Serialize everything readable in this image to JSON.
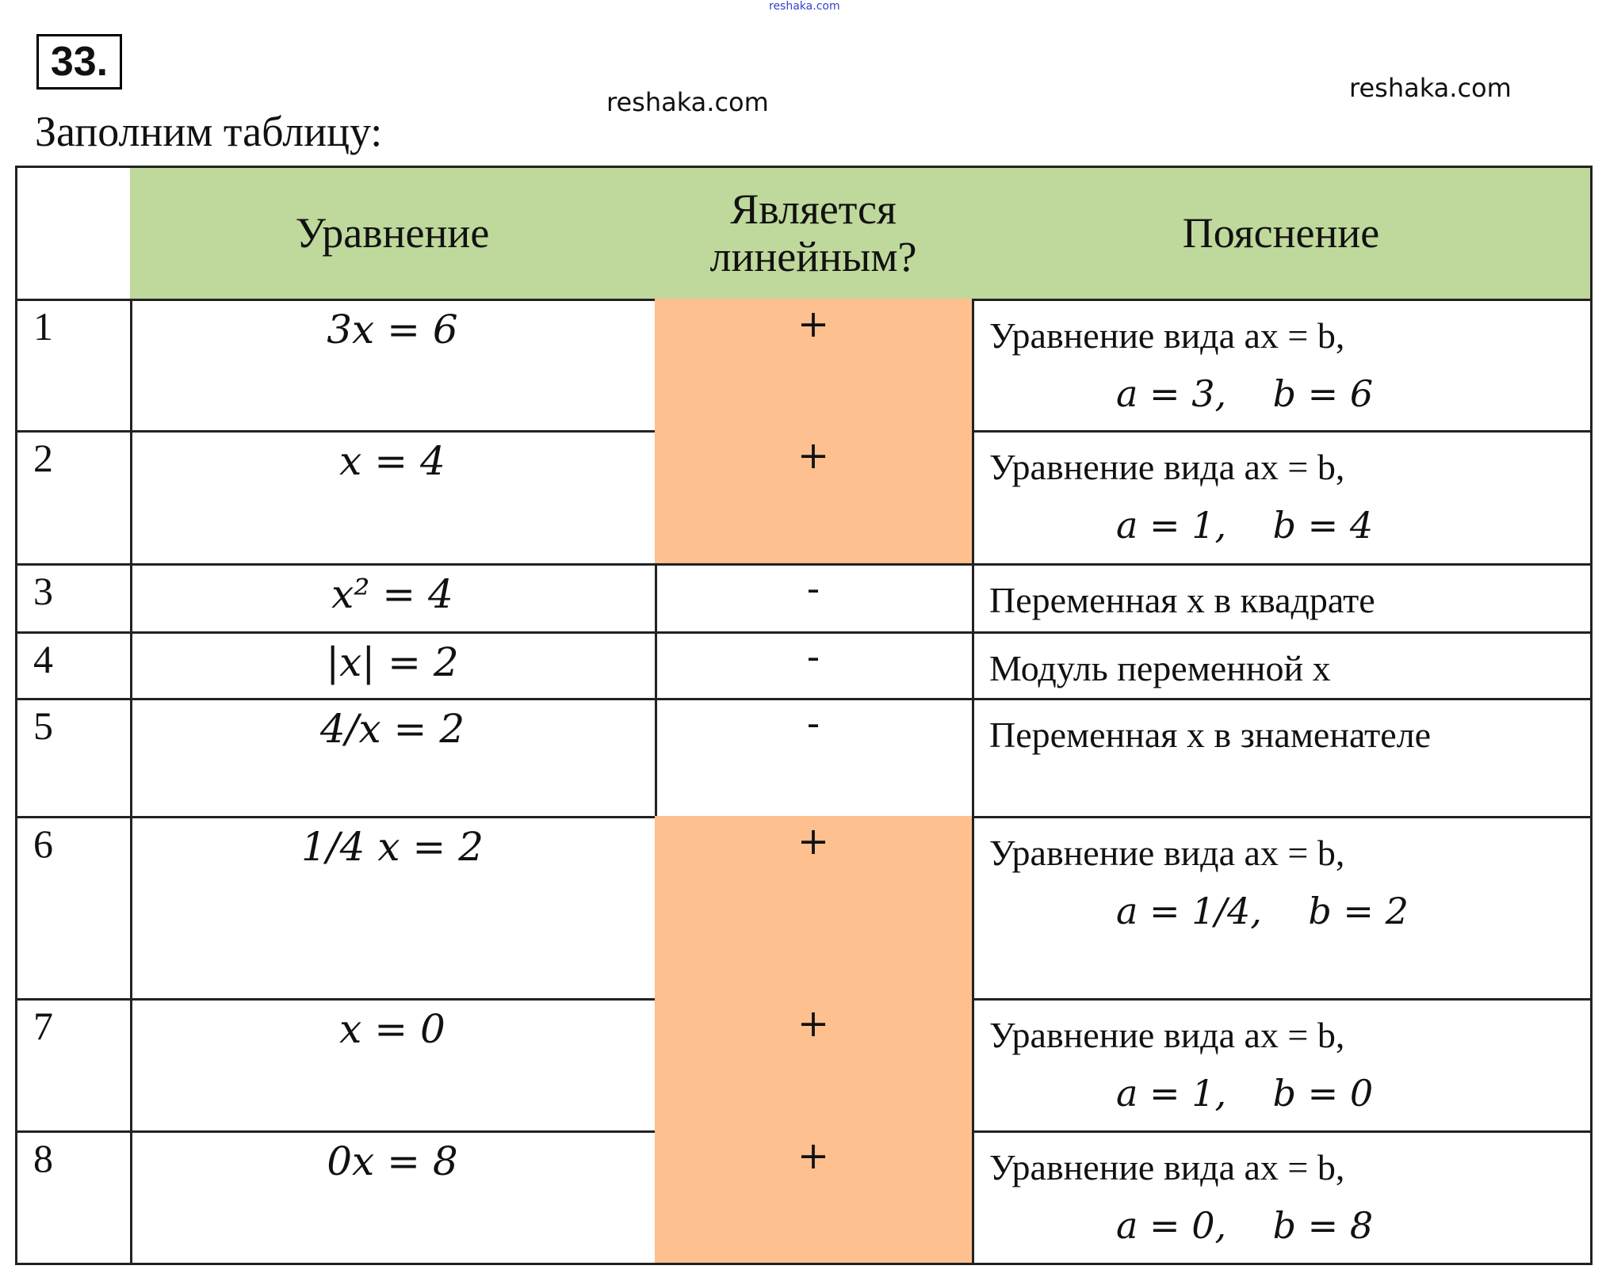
{
  "task_number": "33.",
  "intro": "Заполним таблицу:",
  "watermark": "reshaka.com",
  "colors": {
    "header_bg": "#bfd89c",
    "linear_bg": "#fdc08e"
  },
  "table": {
    "headers": [
      "",
      "Уравнение",
      "Является линейным?",
      "Пояснение"
    ],
    "rows": [
      {
        "n": "1",
        "equation": "3x = 6",
        "linear": "+",
        "explanation": "Уравнение вида ax = b,",
        "params": "a = 3,    b = 6"
      },
      {
        "n": "2",
        "equation": "x = 4",
        "linear": "+",
        "explanation": "Уравнение вида ax = b,",
        "params": "a = 1,    b = 4"
      },
      {
        "n": "3",
        "equation": "x² = 4",
        "linear": "-",
        "explanation": "Переменная x в квадрате",
        "params": ""
      },
      {
        "n": "4",
        "equation": "|x| = 2",
        "linear": "-",
        "explanation": "Модуль переменной x",
        "params": ""
      },
      {
        "n": "5",
        "equation": "4/x = 2",
        "linear": "-",
        "explanation": "Переменная x в знаменателе",
        "params": ""
      },
      {
        "n": "6",
        "equation": "1/4 x = 2",
        "linear": "+",
        "explanation": "Уравнение вида ax = b,",
        "params": "a = 1/4,    b = 2"
      },
      {
        "n": "7",
        "equation": "x = 0",
        "linear": "+",
        "explanation": "Уравнение вида ax = b,",
        "params": "a = 1,    b = 0"
      },
      {
        "n": "8",
        "equation": "0x = 8",
        "linear": "+",
        "explanation": "Уравнение вида ax = b,",
        "params": "a = 0,    b = 8"
      }
    ]
  }
}
